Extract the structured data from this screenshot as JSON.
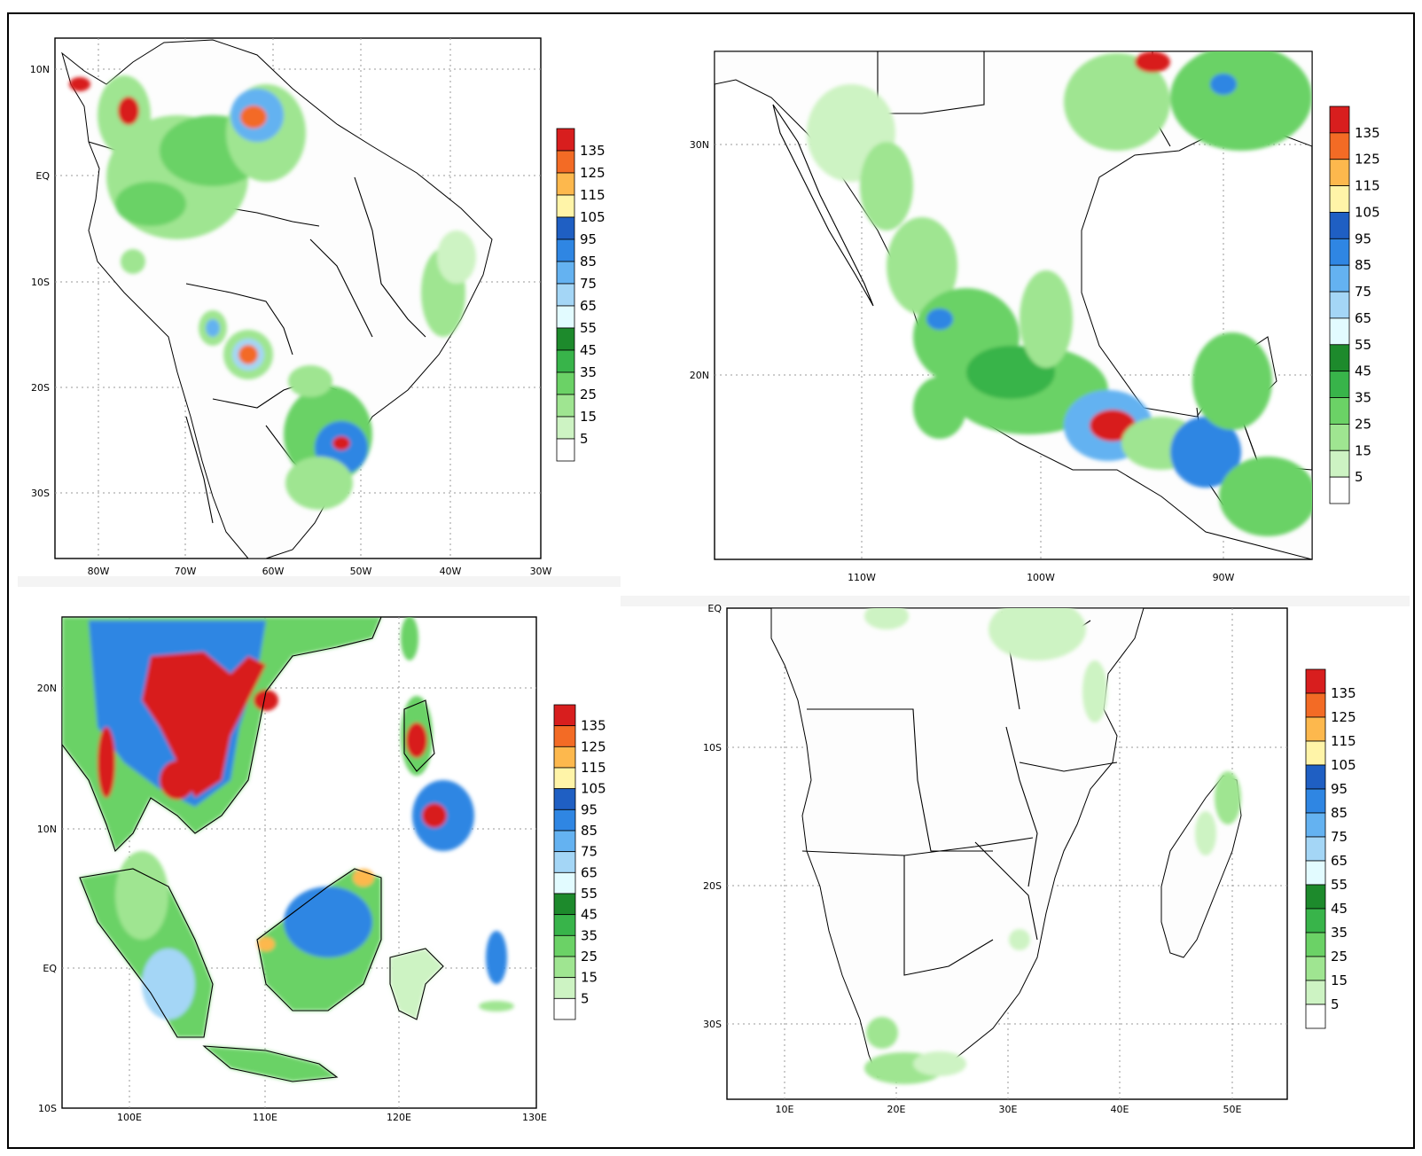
{
  "legend": {
    "labels": [
      "5",
      "15",
      "25",
      "35",
      "45",
      "55",
      "65",
      "75",
      "85",
      "95",
      "105",
      "115",
      "125",
      "135"
    ],
    "colors": [
      "#ffffff",
      "#cdf3c3",
      "#9fe591",
      "#6bd266",
      "#38b44a",
      "#1d8a2c",
      "#e2fbff",
      "#a4d6f6",
      "#64b2f1",
      "#2f86e3",
      "#1f5fc3",
      "#fff4a8",
      "#fdb84d",
      "#f36b25",
      "#d81e1e"
    ]
  },
  "panels": [
    {
      "id": "south-america",
      "x_ticks": [
        "80W",
        "70W",
        "60W",
        "50W",
        "40W",
        "30W"
      ],
      "y_ticks": [
        "10N",
        "EQ",
        "10S",
        "20S",
        "30S"
      ]
    },
    {
      "id": "mexico",
      "x_ticks": [
        "110W",
        "100W",
        "90W"
      ],
      "y_ticks": [
        "30N",
        "20N"
      ]
    },
    {
      "id": "southeast-asia",
      "x_ticks": [
        "100E",
        "110E",
        "120E",
        "130E"
      ],
      "y_ticks": [
        "20N",
        "10N",
        "EQ",
        "10S"
      ]
    },
    {
      "id": "southern-africa",
      "x_ticks": [
        "10E",
        "20E",
        "30E",
        "40E",
        "50E"
      ],
      "y_ticks": [
        "EQ",
        "10S",
        "20S",
        "30S"
      ]
    }
  ]
}
